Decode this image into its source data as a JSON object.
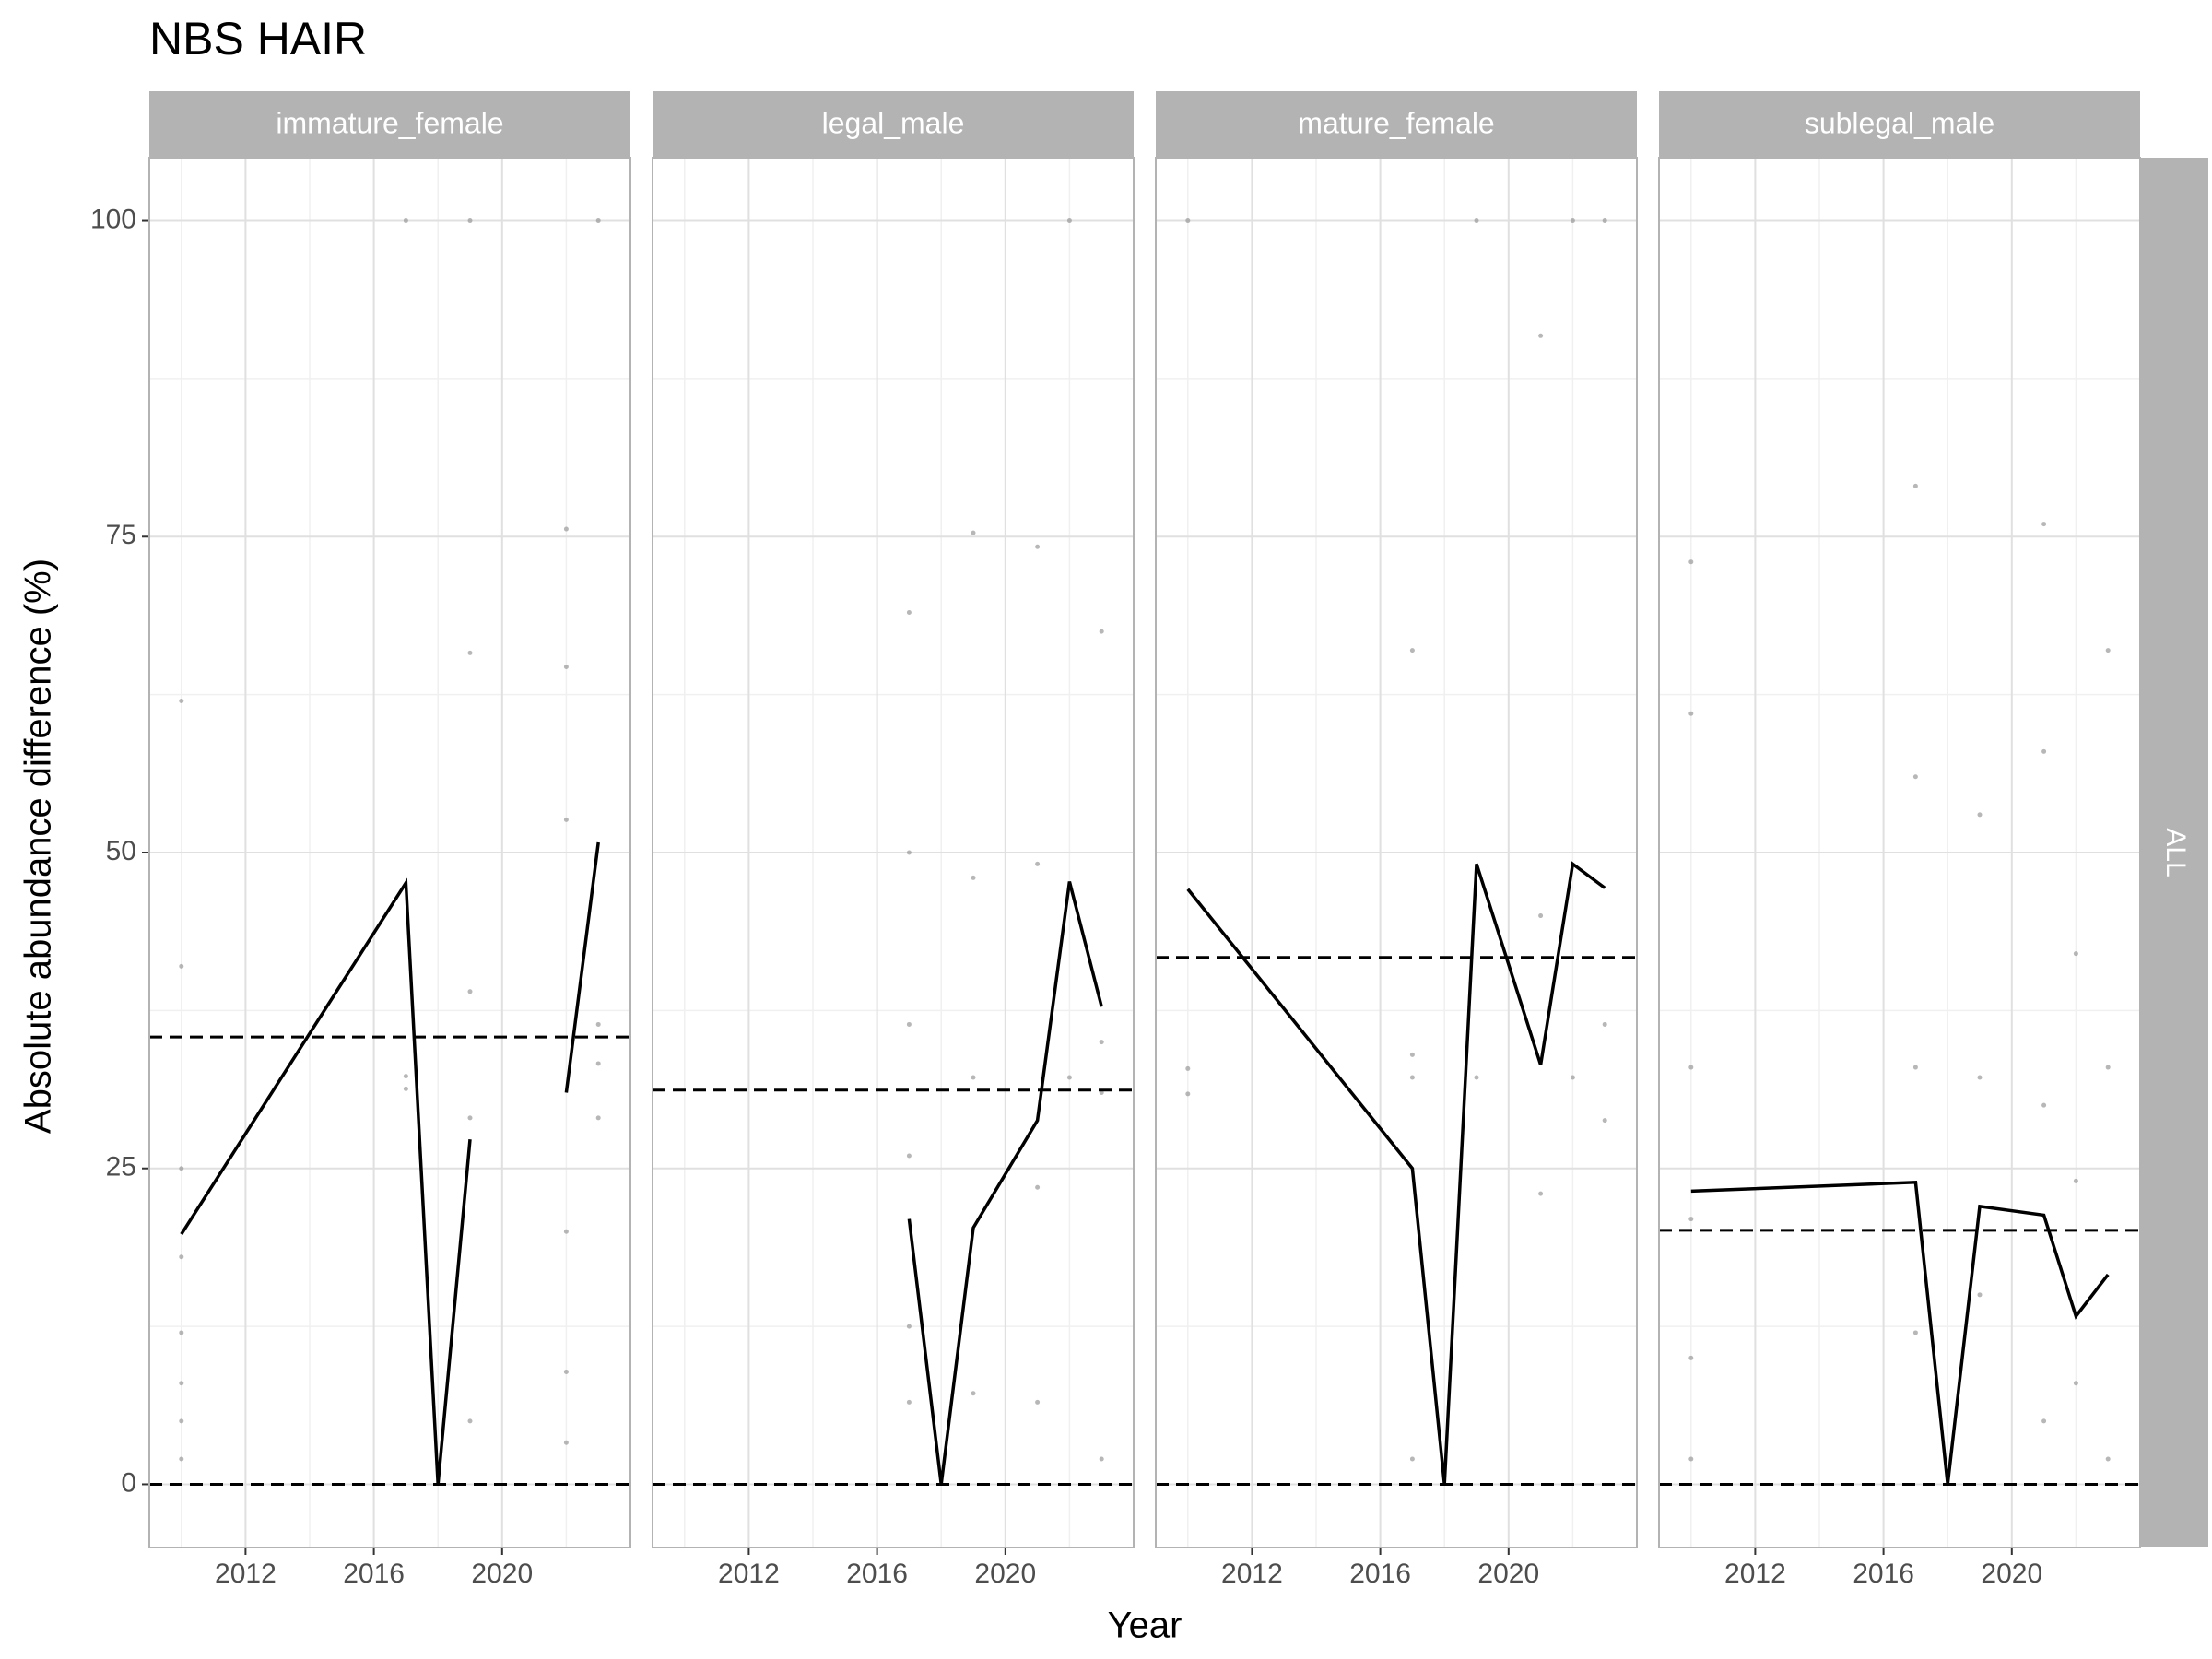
{
  "title": "NBS HAIR",
  "xlabel": "Year",
  "ylabel": "Absolute abundance difference (%)",
  "row_label": "ALL",
  "axes": {
    "xlim": [
      2009,
      2024
    ],
    "xticks": [
      2012,
      2016,
      2020
    ],
    "ylim": [
      -5,
      105
    ],
    "yticks": [
      0,
      25,
      50,
      75,
      100
    ],
    "grid": true
  },
  "chart_data": [
    {
      "type": "line",
      "facet": "immature_female",
      "x": [
        2010,
        2017,
        2018,
        2019,
        2020,
        2022,
        2023
      ],
      "values": [
        19.8,
        47.6,
        0,
        27.3,
        null,
        31,
        50.8
      ],
      "color": "#000000",
      "hlines": [
        0,
        35.4
      ],
      "points": {
        "x": [
          2010,
          2010,
          2010,
          2010,
          2010,
          2010,
          2010,
          2010,
          2017,
          2017,
          2017,
          2019,
          2019,
          2019,
          2019,
          2019,
          2022,
          2022,
          2022,
          2022,
          2022,
          2022,
          2023,
          2023,
          2023,
          2023
        ],
        "y": [
          2,
          5,
          8,
          12,
          18,
          25,
          41,
          62,
          100,
          32.3,
          31.3,
          100,
          65.8,
          39,
          29,
          5,
          75.6,
          64.7,
          52.6,
          20,
          8.9,
          3.3,
          100,
          36.4,
          33.3,
          29
        ]
      }
    },
    {
      "type": "line",
      "facet": "legal_male",
      "x": [
        2017,
        2018,
        2019,
        2021,
        2022,
        2023
      ],
      "values": [
        21,
        0,
        20.3,
        28.8,
        47.7,
        37.8
      ],
      "color": "#000000",
      "hlines": [
        0,
        31.2
      ],
      "points": {
        "x": [
          2017,
          2017,
          2017,
          2017,
          2017,
          2017,
          2019,
          2019,
          2019,
          2019,
          2021,
          2021,
          2021,
          2021,
          2022,
          2022,
          2023,
          2023,
          2023,
          2023
        ],
        "y": [
          69,
          50,
          36.4,
          26,
          12.5,
          6.5,
          75.3,
          48,
          32.2,
          7.2,
          74.2,
          49.1,
          23.5,
          6.5,
          100,
          32.2,
          67.5,
          35,
          31,
          2
        ]
      }
    },
    {
      "type": "line",
      "facet": "mature_female",
      "x": [
        2010,
        2017,
        2018,
        2019,
        2021,
        2022,
        2023
      ],
      "values": [
        47.1,
        25,
        0,
        49.1,
        33.2,
        49.1,
        47.2
      ],
      "color": "#000000",
      "hlines": [
        0,
        41.7
      ],
      "points": {
        "x": [
          2010,
          2010,
          2010,
          2017,
          2017,
          2017,
          2017,
          2019,
          2019,
          2021,
          2021,
          2021,
          2022,
          2022,
          2023,
          2023,
          2023
        ],
        "y": [
          100,
          32.9,
          30.9,
          66,
          34,
          32.2,
          2,
          100,
          32.2,
          90.9,
          45,
          23,
          100,
          32.2,
          100,
          36.4,
          28.8
        ]
      }
    },
    {
      "type": "line",
      "facet": "sublegal_male",
      "x": [
        2010,
        2017,
        2018,
        2019,
        2021,
        2022,
        2023
      ],
      "values": [
        23.2,
        23.9,
        0,
        22,
        21.3,
        13.3,
        16.6
      ],
      "color": "#000000",
      "hlines": [
        0,
        20.1
      ],
      "points": {
        "x": [
          2010,
          2010,
          2010,
          2010,
          2010,
          2010,
          2017,
          2017,
          2017,
          2017,
          2019,
          2019,
          2019,
          2021,
          2021,
          2021,
          2021,
          2022,
          2022,
          2022,
          2023,
          2023,
          2023
        ],
        "y": [
          73,
          61,
          33,
          21,
          10,
          2,
          79,
          56,
          33,
          12,
          53,
          32.2,
          15,
          76,
          58,
          30,
          5,
          42,
          24,
          8,
          66,
          33,
          2
        ]
      }
    }
  ]
}
